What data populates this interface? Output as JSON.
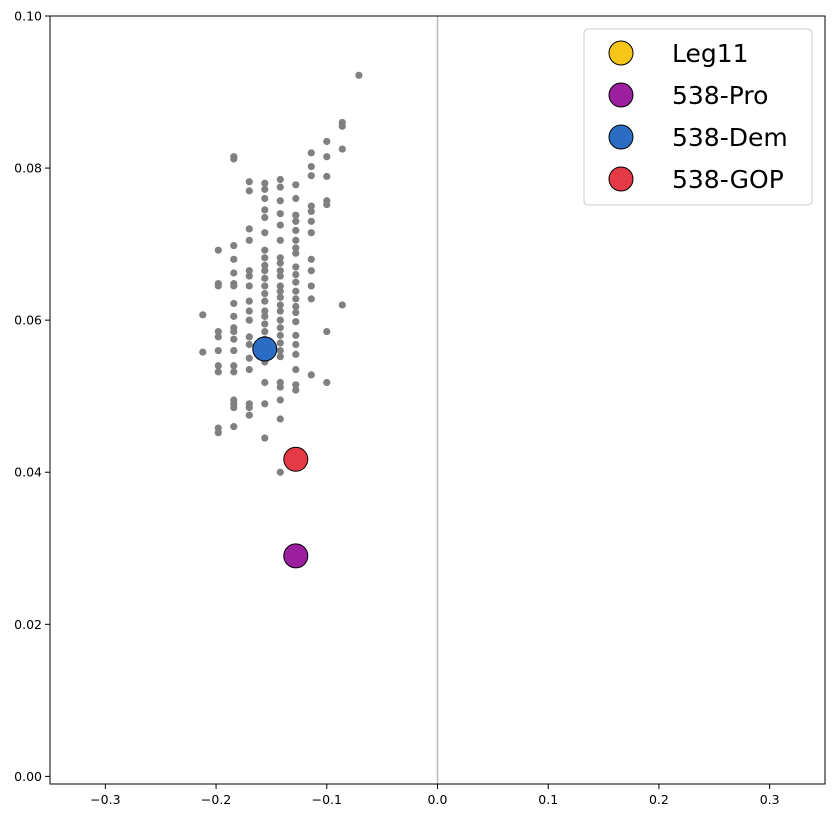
{
  "chart_data": {
    "type": "scatter",
    "title": "",
    "xlabel": "",
    "ylabel": "",
    "xlim": [
      -0.35,
      0.35
    ],
    "ylim": [
      -0.001,
      0.1
    ],
    "grid": false,
    "reference_line_x": 0.0,
    "reference_line_color": "#bbbbbb",
    "x_ticks": [
      -0.3,
      -0.2,
      -0.1,
      0.0,
      0.1,
      0.2,
      0.3
    ],
    "x_tick_labels": [
      "−0.3",
      "−0.2",
      "−0.1",
      "0.0",
      "0.1",
      "0.2",
      "0.3"
    ],
    "y_ticks": [
      0.0,
      0.02,
      0.04,
      0.06,
      0.08,
      0.1
    ],
    "y_tick_labels": [
      "0.00",
      "0.02",
      "0.04",
      "0.06",
      "0.08",
      "0.10"
    ],
    "legend_position": "top-right",
    "background_points": {
      "color": "#808080",
      "points": [
        [
          -0.071,
          0.0922
        ],
        [
          -0.086,
          0.086
        ],
        [
          -0.086,
          0.0855
        ],
        [
          -0.086,
          0.0825
        ],
        [
          -0.086,
          0.062
        ],
        [
          -0.1,
          0.0835
        ],
        [
          -0.1,
          0.0815
        ],
        [
          -0.1,
          0.0789
        ],
        [
          -0.1,
          0.0757
        ],
        [
          -0.1,
          0.0752
        ],
        [
          -0.1,
          0.0585
        ],
        [
          -0.1,
          0.0518
        ],
        [
          -0.114,
          0.082
        ],
        [
          -0.114,
          0.0802
        ],
        [
          -0.114,
          0.079
        ],
        [
          -0.114,
          0.075
        ],
        [
          -0.114,
          0.0743
        ],
        [
          -0.114,
          0.073
        ],
        [
          -0.114,
          0.0715
        ],
        [
          -0.114,
          0.068
        ],
        [
          -0.114,
          0.0665
        ],
        [
          -0.114,
          0.0645
        ],
        [
          -0.114,
          0.0628
        ],
        [
          -0.114,
          0.0528
        ],
        [
          -0.128,
          0.0778
        ],
        [
          -0.128,
          0.076
        ],
        [
          -0.128,
          0.0738
        ],
        [
          -0.128,
          0.073
        ],
        [
          -0.128,
          0.0718
        ],
        [
          -0.128,
          0.0705
        ],
        [
          -0.128,
          0.0695
        ],
        [
          -0.128,
          0.0688
        ],
        [
          -0.128,
          0.067
        ],
        [
          -0.128,
          0.066
        ],
        [
          -0.128,
          0.065
        ],
        [
          -0.128,
          0.0638
        ],
        [
          -0.128,
          0.0628
        ],
        [
          -0.128,
          0.0618
        ],
        [
          -0.128,
          0.061
        ],
        [
          -0.128,
          0.0598
        ],
        [
          -0.128,
          0.058
        ],
        [
          -0.128,
          0.0568
        ],
        [
          -0.128,
          0.0555
        ],
        [
          -0.128,
          0.0535
        ],
        [
          -0.128,
          0.0515
        ],
        [
          -0.128,
          0.0508
        ],
        [
          -0.142,
          0.0785
        ],
        [
          -0.142,
          0.0775
        ],
        [
          -0.142,
          0.0757
        ],
        [
          -0.142,
          0.074
        ],
        [
          -0.142,
          0.0725
        ],
        [
          -0.142,
          0.0705
        ],
        [
          -0.142,
          0.0682
        ],
        [
          -0.142,
          0.0675
        ],
        [
          -0.142,
          0.0665
        ],
        [
          -0.142,
          0.0658
        ],
        [
          -0.142,
          0.0645
        ],
        [
          -0.142,
          0.0638
        ],
        [
          -0.142,
          0.063
        ],
        [
          -0.142,
          0.062
        ],
        [
          -0.142,
          0.0612
        ],
        [
          -0.142,
          0.06
        ],
        [
          -0.142,
          0.059
        ],
        [
          -0.142,
          0.058
        ],
        [
          -0.142,
          0.057
        ],
        [
          -0.142,
          0.056
        ],
        [
          -0.142,
          0.0552
        ],
        [
          -0.142,
          0.0518
        ],
        [
          -0.142,
          0.0512
        ],
        [
          -0.142,
          0.0495
        ],
        [
          -0.142,
          0.047
        ],
        [
          -0.142,
          0.04
        ],
        [
          -0.156,
          0.078
        ],
        [
          -0.156,
          0.0772
        ],
        [
          -0.156,
          0.076
        ],
        [
          -0.156,
          0.0745
        ],
        [
          -0.156,
          0.0735
        ],
        [
          -0.156,
          0.0715
        ],
        [
          -0.156,
          0.0692
        ],
        [
          -0.156,
          0.0682
        ],
        [
          -0.156,
          0.0672
        ],
        [
          -0.156,
          0.0665
        ],
        [
          -0.156,
          0.0655
        ],
        [
          -0.156,
          0.0645
        ],
        [
          -0.156,
          0.0635
        ],
        [
          -0.156,
          0.0625
        ],
        [
          -0.156,
          0.0612
        ],
        [
          -0.156,
          0.0605
        ],
        [
          -0.156,
          0.0595
        ],
        [
          -0.156,
          0.0585
        ],
        [
          -0.156,
          0.0575
        ],
        [
          -0.156,
          0.0565
        ],
        [
          -0.156,
          0.0555
        ],
        [
          -0.156,
          0.0545
        ],
        [
          -0.156,
          0.0518
        ],
        [
          -0.156,
          0.049
        ],
        [
          -0.156,
          0.0445
        ],
        [
          -0.17,
          0.0782
        ],
        [
          -0.17,
          0.077
        ],
        [
          -0.17,
          0.072
        ],
        [
          -0.17,
          0.0705
        ],
        [
          -0.17,
          0.0665
        ],
        [
          -0.17,
          0.0658
        ],
        [
          -0.17,
          0.0645
        ],
        [
          -0.17,
          0.0625
        ],
        [
          -0.17,
          0.0612
        ],
        [
          -0.17,
          0.06
        ],
        [
          -0.17,
          0.0578
        ],
        [
          -0.17,
          0.0568
        ],
        [
          -0.17,
          0.055
        ],
        [
          -0.17,
          0.0535
        ],
        [
          -0.17,
          0.049
        ],
        [
          -0.17,
          0.0485
        ],
        [
          -0.17,
          0.0475
        ],
        [
          -0.184,
          0.0815
        ],
        [
          -0.184,
          0.0812
        ],
        [
          -0.184,
          0.0698
        ],
        [
          -0.184,
          0.068
        ],
        [
          -0.184,
          0.0662
        ],
        [
          -0.184,
          0.0648
        ],
        [
          -0.184,
          0.0645
        ],
        [
          -0.184,
          0.0622
        ],
        [
          -0.184,
          0.0605
        ],
        [
          -0.184,
          0.059
        ],
        [
          -0.184,
          0.0585
        ],
        [
          -0.184,
          0.0575
        ],
        [
          -0.184,
          0.056
        ],
        [
          -0.184,
          0.054
        ],
        [
          -0.184,
          0.0532
        ],
        [
          -0.184,
          0.0495
        ],
        [
          -0.184,
          0.049
        ],
        [
          -0.184,
          0.0485
        ],
        [
          -0.184,
          0.046
        ],
        [
          -0.198,
          0.0692
        ],
        [
          -0.198,
          0.0648
        ],
        [
          -0.198,
          0.0645
        ],
        [
          -0.198,
          0.0585
        ],
        [
          -0.198,
          0.0578
        ],
        [
          -0.198,
          0.056
        ],
        [
          -0.198,
          0.054
        ],
        [
          -0.198,
          0.0532
        ],
        [
          -0.198,
          0.0458
        ],
        [
          -0.198,
          0.0452
        ],
        [
          -0.212,
          0.0607
        ],
        [
          -0.212,
          0.0558
        ]
      ]
    },
    "series": [
      {
        "name": "Leg11",
        "color": "#f5c518",
        "x": [],
        "y": []
      },
      {
        "name": "538-Pro",
        "color": "#9b1f9e",
        "x": [
          -0.128
        ],
        "y": [
          0.029
        ]
      },
      {
        "name": "538-Dem",
        "color": "#2b6cc4",
        "x": [
          -0.156
        ],
        "y": [
          0.0562
        ]
      },
      {
        "name": "538-GOP",
        "color": "#e63946",
        "x": [
          -0.128
        ],
        "y": [
          0.0417
        ]
      }
    ]
  }
}
